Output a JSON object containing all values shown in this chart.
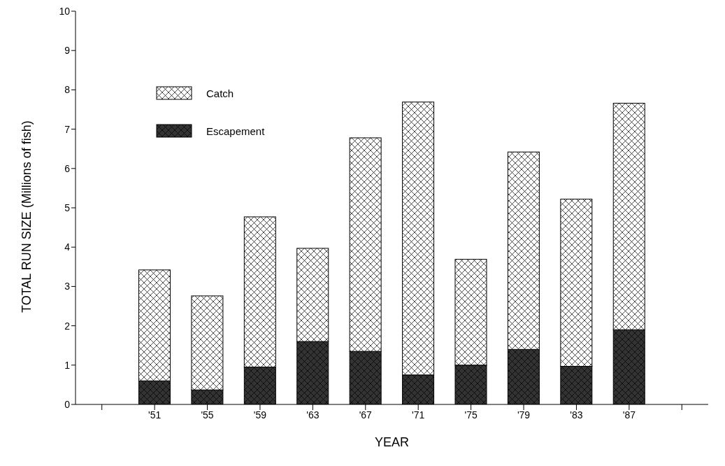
{
  "chart_data": {
    "type": "bar",
    "stacked": true,
    "xlabel": "YEAR",
    "ylabel": "TOTAL RUN SIZE (Millions of fish)",
    "categories": [
      null,
      "'51",
      "'55",
      "'59",
      "'63",
      "'67",
      "'71",
      "'75",
      "'79",
      "'83",
      "'87",
      null
    ],
    "series": [
      {
        "name": "Escapement",
        "color": "#333333",
        "values": [
          null,
          0.6,
          0.37,
          0.95,
          1.6,
          1.35,
          0.75,
          1.0,
          1.4,
          0.97,
          1.9,
          null
        ]
      },
      {
        "name": "Catch",
        "color": "#ffffff",
        "values": [
          null,
          2.82,
          2.39,
          3.82,
          2.37,
          5.43,
          6.94,
          2.69,
          5.02,
          4.25,
          5.76,
          null
        ]
      }
    ],
    "ylim": [
      0,
      10
    ],
    "yticks": [
      0,
      1,
      2,
      3,
      4,
      5,
      6,
      7,
      8,
      9,
      10
    ],
    "grid": false,
    "legend": "top left"
  }
}
